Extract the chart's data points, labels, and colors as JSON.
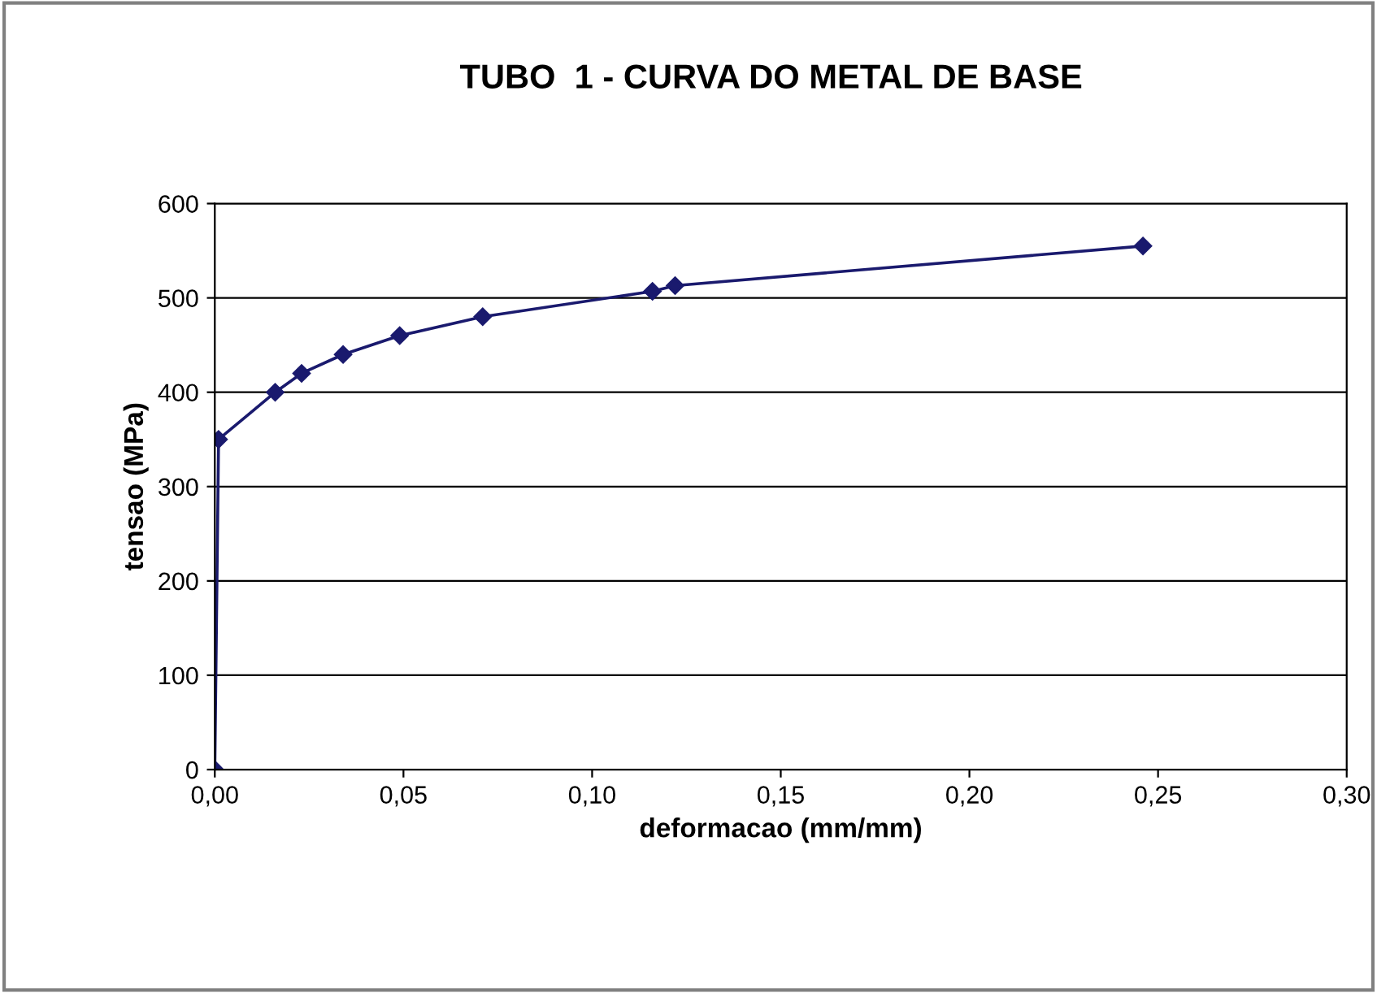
{
  "chart_data": {
    "type": "line",
    "title": "TUBO  1 - CURVA DO METAL DE BASE",
    "xlabel": "deformacao (mm/mm)",
    "ylabel": "tensao (MPa)",
    "series": [
      {
        "color": "#1a1a6e",
        "x": [
          0,
          0.001,
          0.016,
          0.023,
          0.034,
          0.049,
          0.071,
          0.116,
          0.122,
          0.246
        ],
        "values": [
          0,
          350,
          400,
          420,
          440,
          460,
          480,
          507,
          513,
          555
        ]
      }
    ],
    "xlim": [
      0,
      0.3
    ],
    "ylim": [
      0,
      600
    ],
    "xticks": [
      {
        "value": 0,
        "label": "0,00"
      },
      {
        "value": 0.05,
        "label": "0,05"
      },
      {
        "value": 0.1,
        "label": "0,10"
      },
      {
        "value": 0.15,
        "label": "0,15"
      },
      {
        "value": 0.2,
        "label": "0,20"
      },
      {
        "value": 0.25,
        "label": "0,25"
      },
      {
        "value": 0.3,
        "label": "0,30"
      }
    ],
    "yticks": [
      0,
      100,
      200,
      300,
      400,
      500,
      600
    ],
    "grid": "y",
    "marker": "diamond",
    "line_style": "solid"
  }
}
